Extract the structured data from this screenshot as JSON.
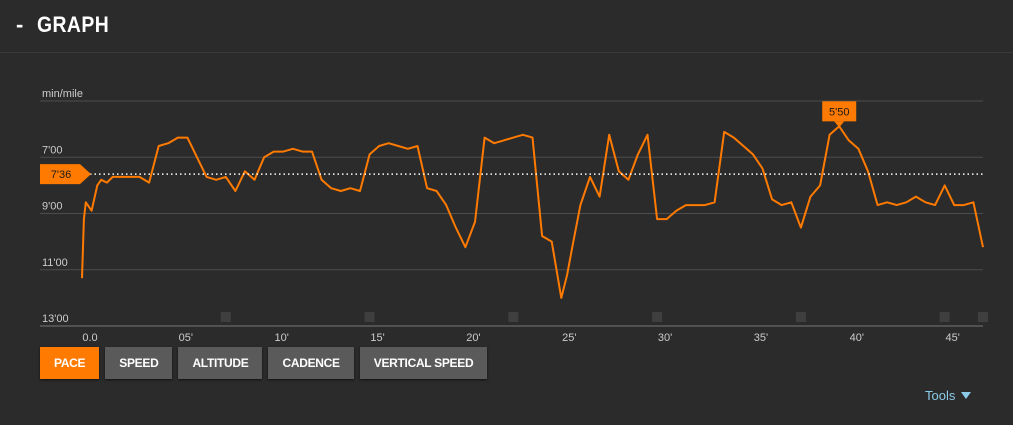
{
  "header": {
    "collapse_symbol": "-",
    "title": "GRAPH"
  },
  "tabs": [
    {
      "label": "PACE",
      "active": true
    },
    {
      "label": "SPEED",
      "active": false
    },
    {
      "label": "ALTITUDE",
      "active": false
    },
    {
      "label": "CADENCE",
      "active": false
    },
    {
      "label": "VERTICAL SPEED",
      "active": false
    }
  ],
  "tools": {
    "label": "Tools",
    "icon": "triangle-down-icon"
  },
  "colors": {
    "accent": "#ff7a00",
    "background": "#2b2b2b",
    "grid": "#555555",
    "tools_link": "#8ccbe8"
  },
  "chart_data": {
    "type": "line",
    "ylabel": "min/mile",
    "y_reversed": true,
    "ylim": [
      5.0,
      13.0
    ],
    "xlim": [
      0,
      47
    ],
    "y_ticks": [
      {
        "v": 7,
        "label": "7'00"
      },
      {
        "v": 9,
        "label": "9'00"
      },
      {
        "v": 11,
        "label": "11'00"
      },
      {
        "v": 13,
        "label": "13'00"
      }
    ],
    "x_ticks": [
      {
        "v": 0,
        "label": "0.0"
      },
      {
        "v": 5,
        "label": "05'"
      },
      {
        "v": 10,
        "label": "10'"
      },
      {
        "v": 15,
        "label": "15'"
      },
      {
        "v": 20,
        "label": "20'"
      },
      {
        "v": 25,
        "label": "25'"
      },
      {
        "v": 30,
        "label": "30'"
      },
      {
        "v": 35,
        "label": "35'"
      },
      {
        "v": 40,
        "label": "40'"
      },
      {
        "v": 45,
        "label": "45'"
      }
    ],
    "average": {
      "value": 7.6,
      "label": "7'36"
    },
    "best": {
      "x": 39.5,
      "value": 5.83,
      "label": "5'50"
    },
    "series": [
      {
        "x": [
          0,
          0.1,
          0.2,
          0.5,
          0.8,
          1,
          1.3,
          1.6,
          2,
          2.5,
          3,
          3.5,
          4,
          4.5,
          5,
          5.5,
          6,
          6.5,
          7,
          7.5,
          8,
          8.5,
          9,
          9.5,
          10,
          10.5,
          11,
          11.5,
          12,
          12.5,
          13,
          13.5,
          14,
          14.5,
          15,
          15.5,
          16,
          16.5,
          17,
          17.5,
          18,
          18.5,
          19,
          19.5,
          20,
          20.5,
          21,
          21.5,
          22,
          22.5,
          23,
          23.5,
          24,
          24.5,
          25,
          25.3,
          25.6,
          26,
          26.5,
          27,
          27.5,
          28,
          28.5,
          29,
          29.5,
          30,
          30.5,
          31,
          31.5,
          32,
          32.5,
          33,
          33.5,
          34,
          34.5,
          35,
          35.5,
          36,
          36.5,
          37,
          37.5,
          38,
          38.5,
          39,
          39.5,
          40,
          40.5,
          41,
          41.5,
          42,
          42.5,
          43,
          43.5,
          44,
          44.5,
          45,
          45.5,
          46,
          46.5,
          47
        ],
        "y": [
          11.3,
          9.2,
          8.6,
          8.9,
          8.0,
          7.8,
          7.9,
          7.7,
          7.7,
          7.7,
          7.7,
          7.9,
          6.6,
          6.5,
          6.3,
          6.3,
          7.0,
          7.7,
          7.8,
          7.7,
          8.2,
          7.5,
          7.8,
          7.0,
          6.8,
          6.8,
          6.7,
          6.8,
          6.8,
          7.8,
          8.1,
          8.2,
          8.1,
          8.2,
          6.9,
          6.6,
          6.5,
          6.6,
          6.7,
          6.6,
          8.1,
          8.2,
          8.7,
          9.5,
          10.2,
          9.3,
          6.3,
          6.5,
          6.4,
          6.3,
          6.2,
          6.3,
          9.8,
          10.0,
          12.0,
          11.2,
          10.1,
          8.7,
          7.7,
          8.4,
          6.2,
          7.5,
          7.8,
          6.9,
          6.2,
          9.2,
          9.2,
          8.9,
          8.7,
          8.7,
          8.7,
          8.6,
          6.1,
          6.3,
          6.6,
          6.9,
          7.4,
          8.5,
          8.7,
          8.6,
          9.5,
          8.4,
          8.0,
          6.2,
          5.9,
          6.4,
          6.7,
          7.5,
          8.7,
          8.6,
          8.7,
          8.6,
          8.4,
          8.6,
          8.7,
          8.0,
          8.7,
          8.7,
          8.6,
          10.2
        ]
      }
    ]
  }
}
